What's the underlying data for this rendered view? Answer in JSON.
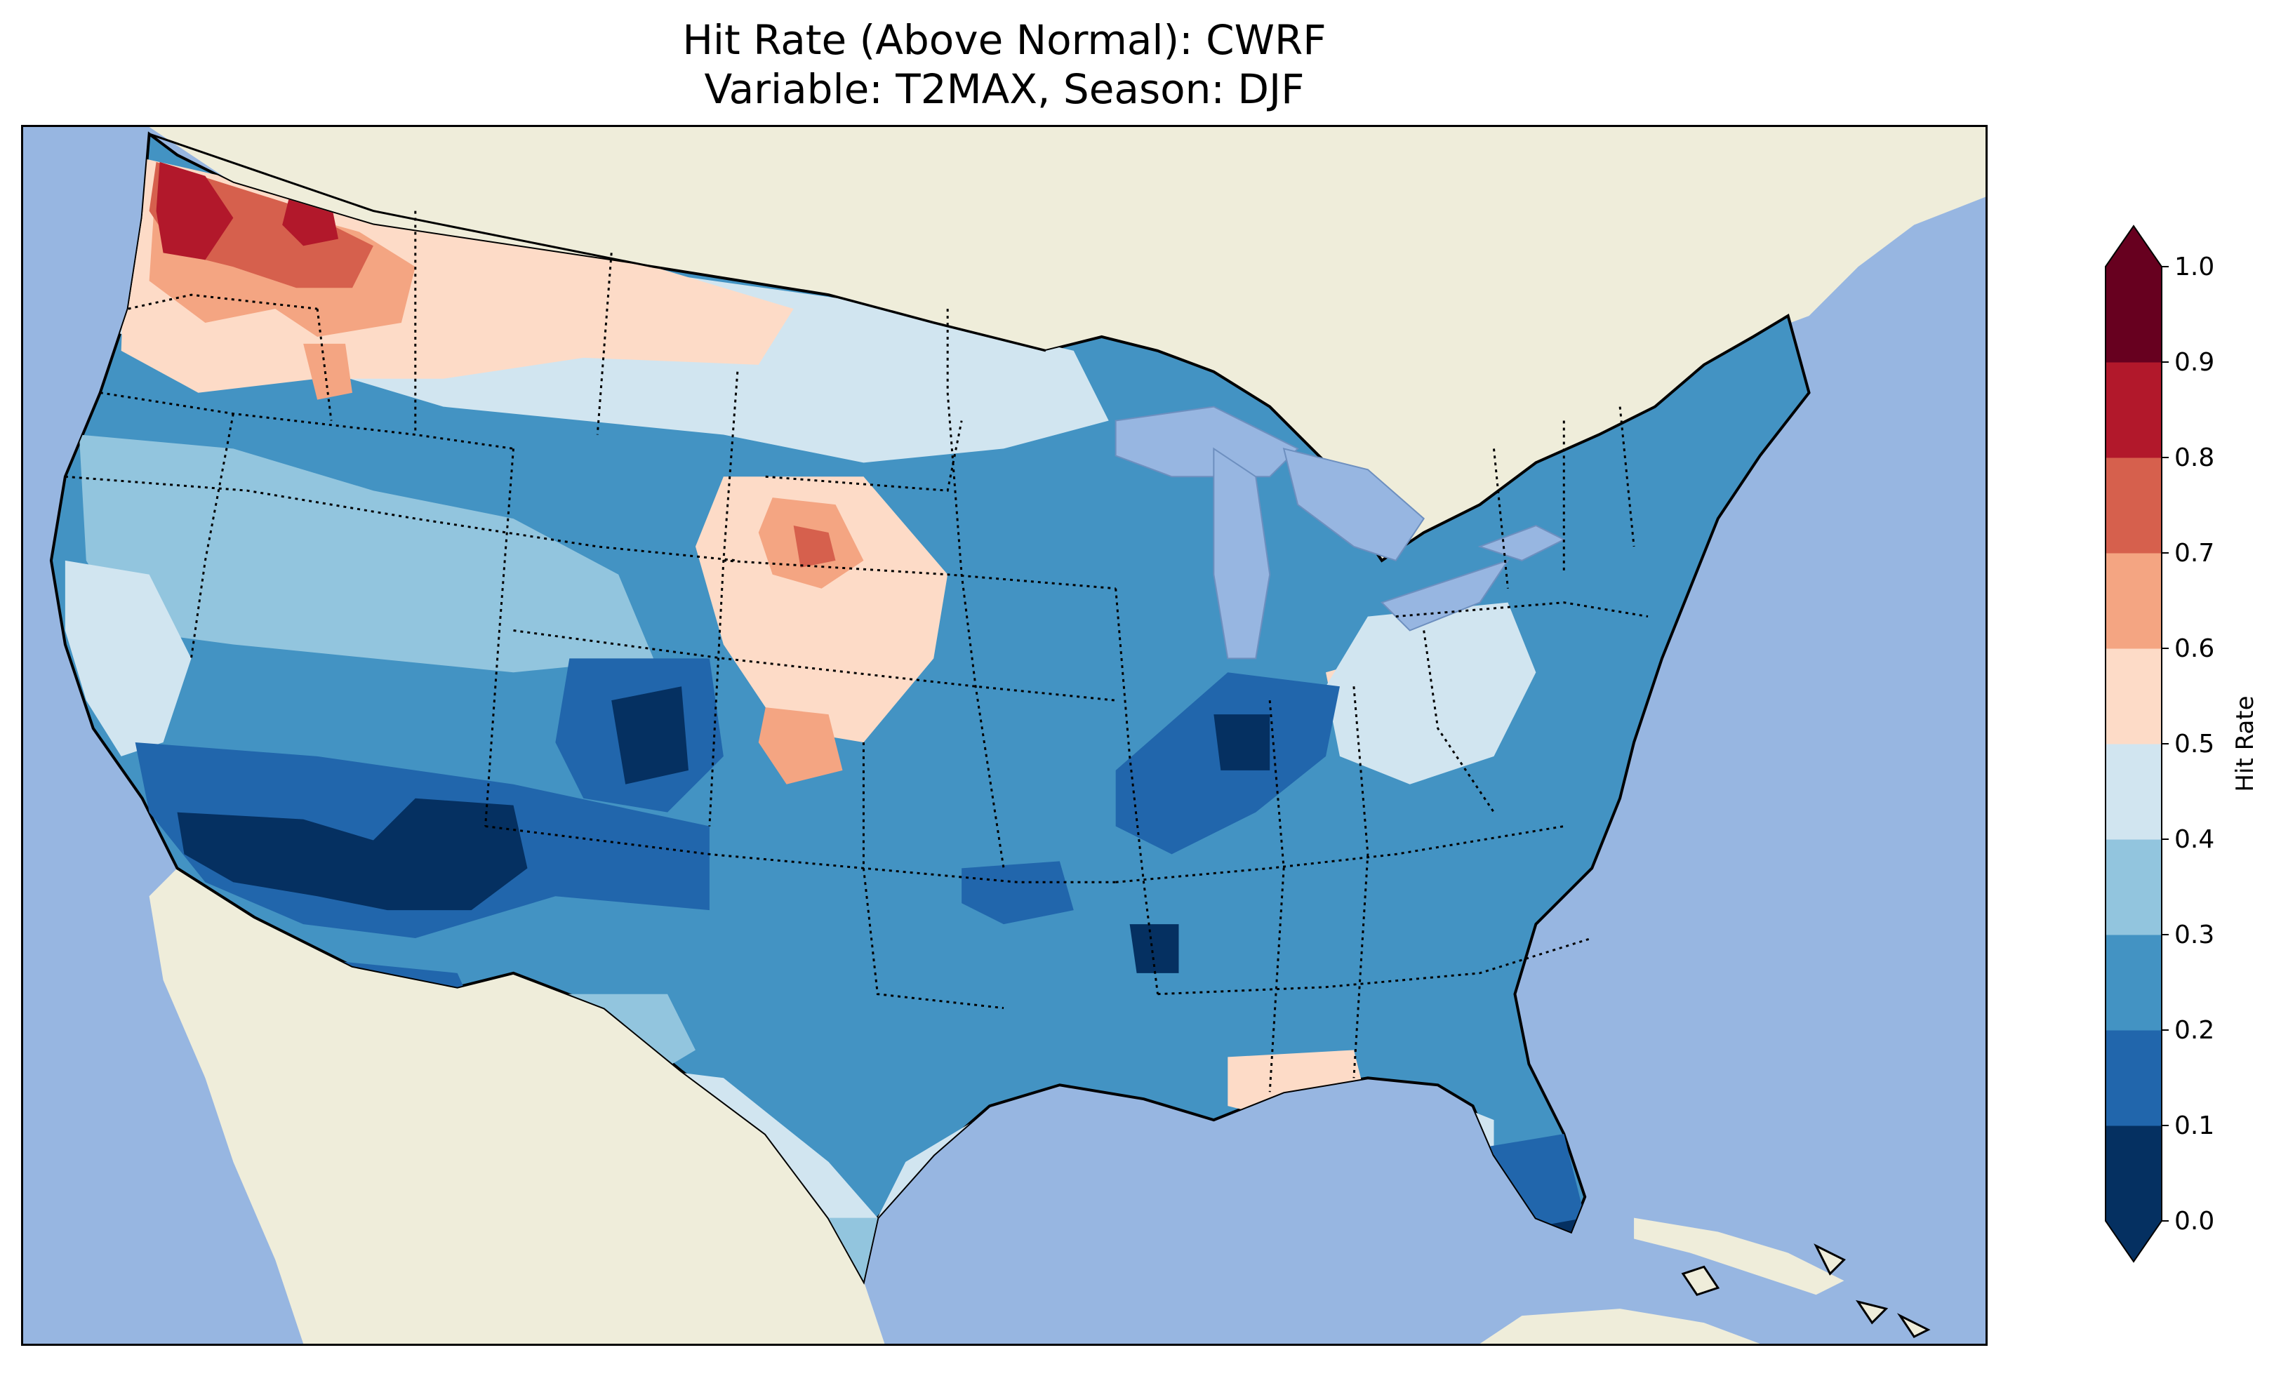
{
  "title": {
    "line1": "Hit Rate (Above Normal): CWRF",
    "line2": "Variable: T2MAX, Season: DJF"
  },
  "map": {
    "projection": "Lambert Conformal (CONUS)",
    "ocean_color": "#97b6e1",
    "land_color": "#efedda",
    "coastline_color": "#000000",
    "state_border_style": "dotted"
  },
  "colorbar": {
    "label": "Hit Rate",
    "extend": "both",
    "levels": [
      "0.0",
      "0.1",
      "0.2",
      "0.3",
      "0.4",
      "0.5",
      "0.6",
      "0.7",
      "0.8",
      "0.9",
      "1.0"
    ],
    "colors": [
      "#053061",
      "#2166ac",
      "#4393c3",
      "#92c5de",
      "#d1e5f0",
      "#fddbc7",
      "#f4a582",
      "#d6604d",
      "#b2182b",
      "#67001f"
    ],
    "under_color": "#053061",
    "over_color": "#67001f"
  }
}
